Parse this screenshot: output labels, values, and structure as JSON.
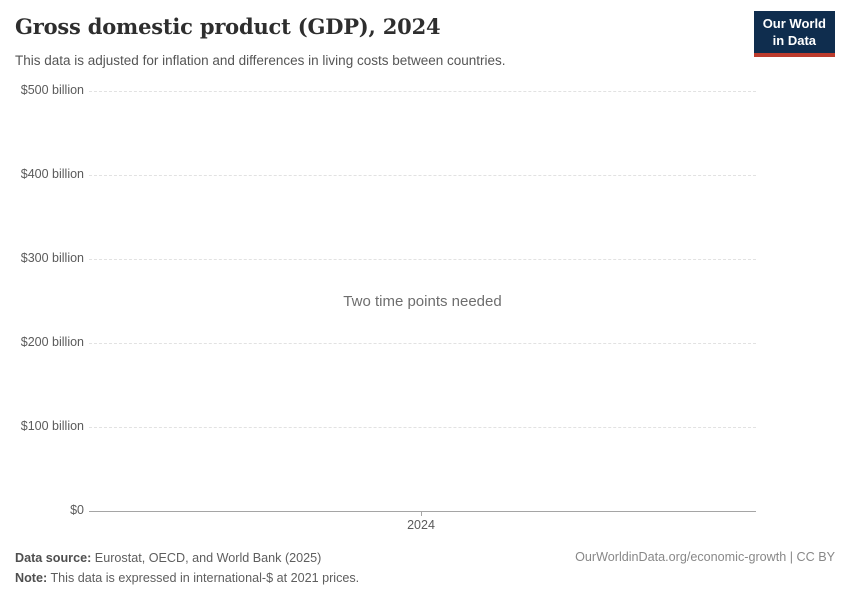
{
  "header": {
    "title": "Gross domestic product (GDP), 2024",
    "subtitle": "This data is adjusted for inflation and differences in living costs between countries.",
    "logo": {
      "line1": "Our World",
      "line2": "in Data",
      "bg_color": "#0f2d4e",
      "accent_color": "#bc3b2d"
    }
  },
  "chart_data": {
    "type": "line",
    "title": "Gross domestic product (GDP), 2024",
    "empty_state_message": "Two time points needed",
    "series": [],
    "x_ticks": [
      "2024"
    ],
    "y_ticks": [
      {
        "value": 0,
        "label": "$0"
      },
      {
        "value": 100,
        "label": "$100 billion"
      },
      {
        "value": 200,
        "label": "$200 billion"
      },
      {
        "value": 300,
        "label": "$300 billion"
      },
      {
        "value": 400,
        "label": "$400 billion"
      },
      {
        "value": 500,
        "label": "$500 billion"
      }
    ],
    "ylim": [
      0,
      500
    ],
    "y_unit": "billion international-$",
    "xlabel": "",
    "ylabel": "",
    "grid": "horizontal-dashed",
    "legend": "none"
  },
  "footer": {
    "datasource_label": "Data source:",
    "datasource_value": " Eurostat, OECD, and World Bank (2025)",
    "note_label": "Note:",
    "note_value": " This data is expressed in international-$ at 2021 prices.",
    "rights": "OurWorldinData.org/economic-growth | CC BY"
  },
  "colors": {
    "grid": "#e2e2e2",
    "axis": "#a5a5a5",
    "tick_label": "#5b5b5b",
    "message": "#6e6e6e",
    "title": "#2e2e2e",
    "subtitle": "#555555"
  }
}
